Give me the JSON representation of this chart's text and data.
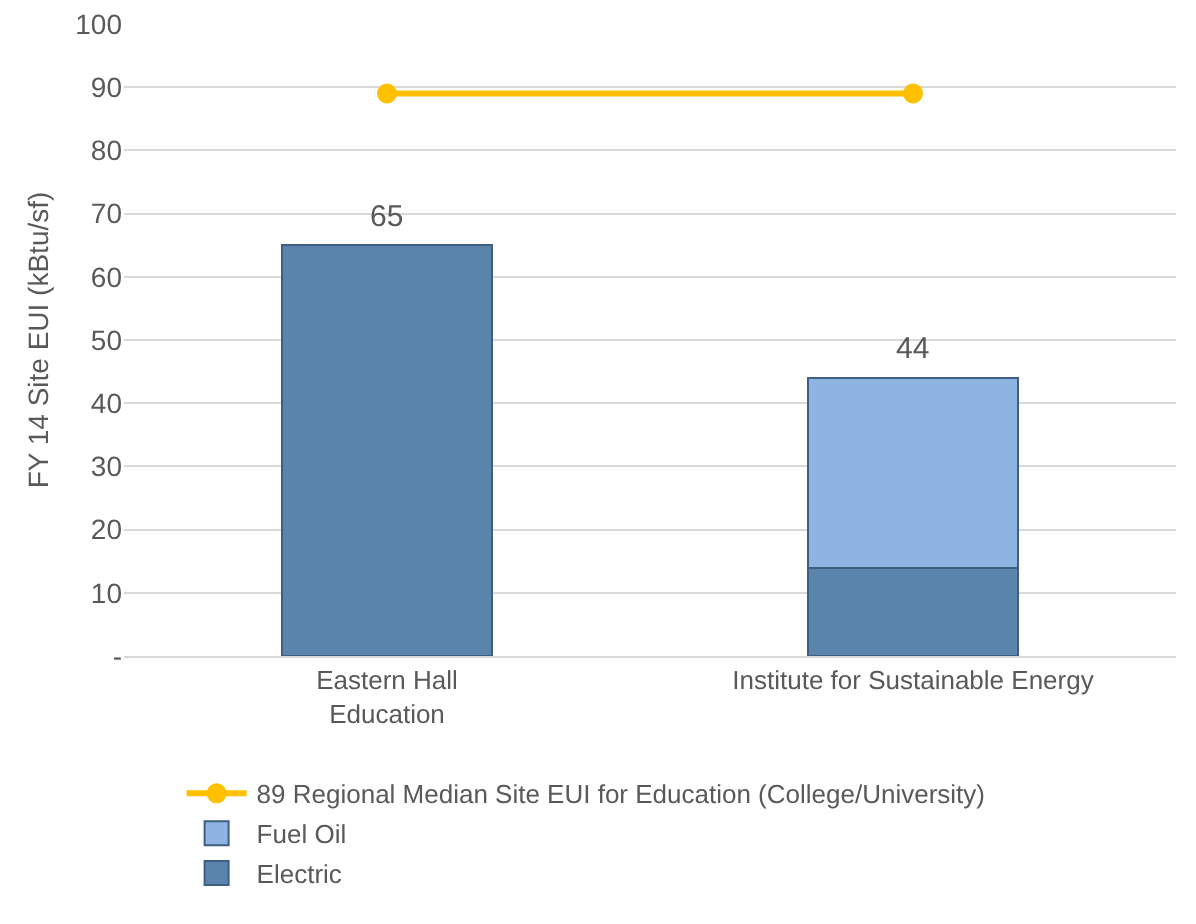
{
  "chart_data": {
    "type": "bar",
    "stacked": true,
    "ylabel": "FY 14 Site EUI (kBtu/sf)",
    "categories": [
      "Eastern Hall\nEducation",
      "Institute for Sustainable Energy"
    ],
    "series": [
      {
        "name": "Electric",
        "color": "#5b84ac",
        "values": [
          65,
          14
        ]
      },
      {
        "name": "Fuel Oil",
        "color": "#8db4e2",
        "values": [
          null,
          30
        ]
      },
      {
        "name": "89 Regional Median Site EUI for Education (College/University)",
        "type": "line",
        "color": "#ffc000",
        "values": [
          89,
          89
        ],
        "marker": "circle"
      }
    ],
    "totals": [
      "65",
      "44"
    ],
    "ylim": [
      0,
      100
    ],
    "yticks": [
      {
        "value": 0,
        "label": "-"
      },
      10,
      20,
      30,
      40,
      50,
      60,
      70,
      80,
      90,
      100
    ],
    "grid": "y",
    "legend": "bottom"
  }
}
